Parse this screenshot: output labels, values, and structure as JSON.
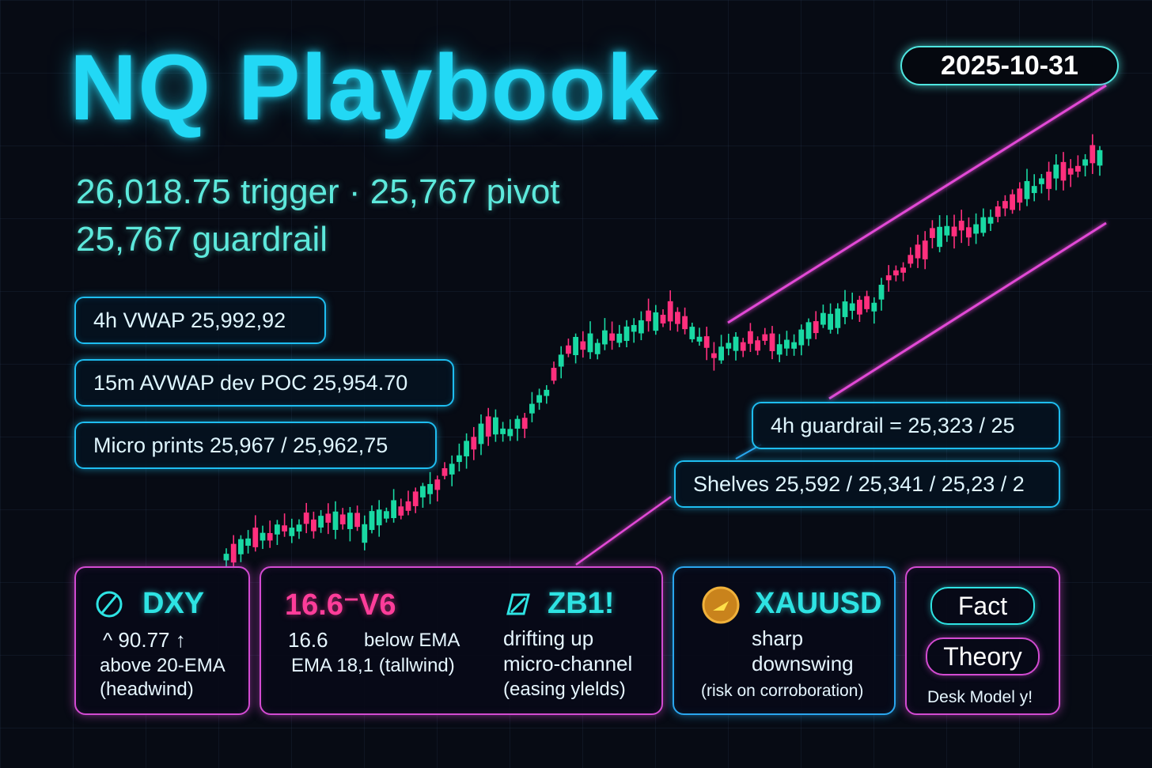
{
  "header": {
    "title": "NQ Playbook",
    "date": "2025-10-31",
    "line1": "26,018.75 trigger · 25,767 pivot",
    "line2": "25,767 guardrail"
  },
  "levels": {
    "vwap_4h": "4h VWAP 25,992,92",
    "avwap_15m": "15m AVWAP dev POC 25,954.70",
    "micro_prints": "Micro prints 25,967 / 25,962,75",
    "guardrail_4h": "4h guardrail  = 25,323 / 25",
    "shelves": "Shelves 25,592 / 25,341 / 25,23 / 2"
  },
  "cards": {
    "dxy": {
      "symbol": "DXY",
      "value": "^ 90.77 ↑",
      "line1": "above 20-EMA",
      "line2": "(headwind)",
      "icon": "dxy-logo-icon"
    },
    "vix": {
      "symbol": "16.6⁻V6",
      "value": "16.6",
      "note": "below EMA",
      "line2": "EMA 18,1 (tallwind)"
    },
    "zb": {
      "symbol": "ZB1!",
      "line1": "drifting up",
      "line2": "micro-channel",
      "line3": "(easing ylelds)",
      "icon": "zb-logo-icon"
    },
    "xau": {
      "symbol": "XAUUSD",
      "line1": "sharp",
      "line2": "downswing",
      "line3": "(risk on corroboration)",
      "icon": "gold-coin-icon"
    },
    "legend": {
      "fact": "Fact",
      "theory": "Theory",
      "footer": "Desk Model y!"
    }
  },
  "colors": {
    "bull": "#19d9a3",
    "bear": "#ff2f7d",
    "accent": "#22d8f5",
    "channel": "#e24ad6"
  },
  "chart_data": {
    "type": "candlestick",
    "trend": "uptrend inside rising channel",
    "candles": [
      {
        "o": 0,
        "c": 0
      },
      {
        "o": 3,
        "c": 5
      },
      {
        "o": 6,
        "c": 3
      },
      {
        "o": 4,
        "c": 8
      },
      {
        "o": 8,
        "c": 4
      }
    ]
  }
}
